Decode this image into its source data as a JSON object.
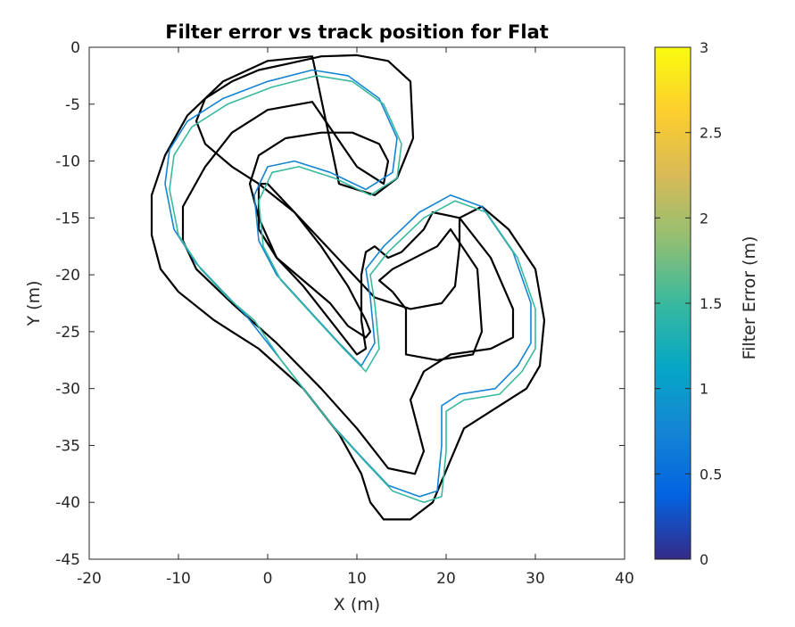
{
  "chart_data": {
    "type": "line",
    "title": "Filter error vs track position for Flat",
    "xlabel": "X (m)",
    "ylabel": "Y (m)",
    "xlim": [
      -20,
      40
    ],
    "ylim": [
      -45,
      0
    ],
    "xticks": [
      -20,
      -10,
      0,
      10,
      20,
      30,
      40
    ],
    "yticks": [
      0,
      -5,
      -10,
      -15,
      -20,
      -25,
      -30,
      -35,
      -40,
      -45
    ],
    "grid": false,
    "colorbar": {
      "label": "Filter Error (m)",
      "range": [
        0,
        3
      ],
      "ticks": [
        "0",
        "0.5",
        "1",
        "1.5",
        "2",
        "2.5",
        "3"
      ],
      "colormap": [
        "#352a87",
        "#0363e1",
        "#1485d4",
        "#06a7c6",
        "#38b99e",
        "#92bf73",
        "#d9ba56",
        "#fcce2e",
        "#f9fb0e"
      ]
    },
    "series": [
      {
        "role": "track-outer-boundary",
        "color": "#000000",
        "x": [
          5.0,
          0.0,
          -5.0,
          -9.0,
          -11.5,
          -13.0,
          -13.0,
          -12.0,
          -10.0,
          -6.0,
          -1.0,
          4.0,
          8.0,
          10.5,
          11.5,
          13.0,
          16.0,
          18.5,
          22.0,
          26.0,
          29.0,
          30.5,
          31.0,
          30.0,
          27.0,
          24.0,
          21.5,
          21.5,
          21.0,
          19.5,
          16.0,
          12.0,
          9.0,
          6.0,
          3.0,
          -1.0,
          -4.0,
          -7.0,
          -8.0,
          -7.0,
          -4.0,
          -1.0,
          2.0,
          6.0,
          10.0,
          13.5,
          16.0,
          16.3,
          14.5,
          12.0,
          8.0,
          5.0
        ],
        "y": [
          -0.8,
          -1.2,
          -3.0,
          -6.0,
          -9.5,
          -13.0,
          -16.5,
          -19.5,
          -21.5,
          -24.0,
          -26.5,
          -30.0,
          -34.0,
          -37.5,
          -40.0,
          -41.5,
          -41.5,
          -40.0,
          -33.5,
          -31.5,
          -30.0,
          -28.0,
          -24.0,
          -19.5,
          -16.0,
          -14.0,
          -15.0,
          -17.5,
          -21.0,
          -22.5,
          -23.0,
          -22.0,
          -19.5,
          -17.0,
          -14.5,
          -12.0,
          -10.5,
          -8.5,
          -6.5,
          -4.5,
          -3.0,
          -2.0,
          -1.5,
          -0.8,
          -0.7,
          -1.2,
          -3.0,
          -8.0,
          -11.5,
          -13.0,
          -12.0,
          -0.8
        ]
      },
      {
        "role": "track-inner-boundary",
        "color": "#000000",
        "x": [
          5.0,
          0.0,
          -4.0,
          -7.0,
          -9.5,
          -9.5,
          -8.0,
          -4.0,
          1.0,
          6.0,
          10.0,
          13.5,
          16.5,
          17.5,
          16.0,
          17.5,
          20.5,
          25.0,
          27.5,
          27.5,
          25.0,
          21.5,
          18.5,
          17.5,
          15.0,
          13.5,
          12.0,
          11.0,
          10.5,
          10.5,
          11.0,
          10.0,
          7.0,
          4.0,
          1.0,
          -1.0,
          -2.0,
          -1.0,
          2.0,
          6.0,
          9.5,
          12.5,
          13.5,
          13.0,
          10.0,
          5.0
        ],
        "y": [
          -4.8,
          -5.5,
          -7.5,
          -10.5,
          -14.0,
          -17.0,
          -19.5,
          -22.5,
          -26.0,
          -30.0,
          -33.5,
          -37.0,
          -37.5,
          -35.5,
          -31.0,
          -28.5,
          -27.0,
          -26.5,
          -25.5,
          -23.0,
          -18.5,
          -15.0,
          -14.5,
          -16.0,
          -18.0,
          -18.5,
          -17.5,
          -18.0,
          -20.0,
          -24.0,
          -26.5,
          -27.0,
          -24.0,
          -21.0,
          -18.5,
          -15.0,
          -12.0,
          -9.5,
          -8.0,
          -7.5,
          -7.5,
          -8.5,
          -10.0,
          -12.0,
          -10.5,
          -4.8
        ]
      },
      {
        "role": "track-inner-island",
        "color": "#000000",
        "x": [
          20.5,
          19.0,
          14.0,
          12.5,
          14.0,
          15.5,
          15.5,
          19.0,
          23.0,
          24.0,
          23.5,
          20.5
        ],
        "y": [
          -16.0,
          -17.5,
          -19.5,
          -20.5,
          -21.5,
          -23.0,
          -27.0,
          -27.5,
          -27.0,
          -25.0,
          -19.5,
          -16.0
        ]
      },
      {
        "role": "track-mid-island",
        "color": "#000000",
        "x": [
          -1.0,
          -1.0,
          1.0,
          4.0,
          7.0,
          9.0,
          11.0,
          11.5,
          11.0,
          9.0,
          6.0,
          3.0,
          0.0,
          -1.0
        ],
        "y": [
          -12.0,
          -16.0,
          -18.5,
          -20.5,
          -22.5,
          -24.5,
          -25.5,
          -25.0,
          -24.0,
          -21.0,
          -17.5,
          -14.5,
          -12.0,
          -12.0
        ]
      },
      {
        "role": "filter-trajectory-1",
        "color": "#1485d4",
        "x": [
          -2.5,
          -5.0,
          -8.0,
          -10.5,
          -11.5,
          -11.0,
          -9.0,
          -5.0,
          0.0,
          5.0,
          9.0,
          12.5,
          14.5,
          14.0,
          11.0,
          7.0,
          3.0,
          0.0,
          -1.5,
          -1.0,
          1.0,
          4.5,
          8.0,
          10.5,
          12.0,
          11.5,
          11.0,
          13.0,
          17.0,
          20.5,
          24.0,
          27.5,
          29.5,
          29.5,
          28.0,
          25.5,
          21.5,
          19.5,
          19.5,
          19.0,
          17.0,
          13.5,
          10.5,
          7.0,
          4.0,
          1.0,
          -2.5
        ],
        "y": [
          -23.5,
          -21.5,
          -19.0,
          -16.0,
          -12.0,
          -9.0,
          -6.5,
          -4.5,
          -3.0,
          -2.0,
          -2.5,
          -4.5,
          -8.0,
          -11.0,
          -12.5,
          -11.0,
          -10.0,
          -10.5,
          -13.0,
          -17.0,
          -20.0,
          -23.0,
          -26.0,
          -28.0,
          -26.0,
          -22.0,
          -19.5,
          -17.5,
          -14.5,
          -13.0,
          -14.0,
          -18.0,
          -22.5,
          -26.0,
          -28.0,
          -30.0,
          -30.5,
          -31.5,
          -35.0,
          -39.0,
          -39.5,
          -38.5,
          -36.0,
          -33.0,
          -30.0,
          -27.0,
          -23.5
        ]
      },
      {
        "role": "filter-trajectory-2",
        "color": "#38b99e",
        "x": [
          -1.5,
          -4.5,
          -7.5,
          -10.0,
          -11.0,
          -10.5,
          -8.5,
          -4.5,
          0.5,
          5.5,
          9.5,
          13.0,
          15.0,
          14.5,
          11.5,
          7.5,
          3.5,
          0.5,
          -1.0,
          -0.5,
          1.5,
          5.0,
          8.5,
          11.0,
          12.5,
          12.0,
          11.5,
          13.5,
          17.5,
          21.0,
          24.5,
          28.0,
          30.0,
          30.0,
          28.5,
          26.0,
          22.0,
          20.0,
          20.0,
          19.5,
          17.5,
          14.0,
          11.0,
          7.5,
          4.5,
          1.5,
          -1.5
        ],
        "y": [
          -24.0,
          -22.0,
          -19.5,
          -16.5,
          -12.5,
          -9.5,
          -7.0,
          -5.0,
          -3.5,
          -2.5,
          -3.0,
          -5.0,
          -8.5,
          -11.5,
          -13.0,
          -11.5,
          -10.5,
          -11.0,
          -13.5,
          -17.5,
          -20.5,
          -23.5,
          -26.5,
          -28.5,
          -26.5,
          -22.5,
          -20.0,
          -18.0,
          -15.0,
          -13.5,
          -14.5,
          -18.5,
          -23.0,
          -26.5,
          -28.5,
          -30.5,
          -31.0,
          -32.0,
          -35.5,
          -39.5,
          -40.0,
          -39.0,
          -36.5,
          -33.5,
          -30.5,
          -27.5,
          -24.0
        ]
      }
    ]
  }
}
